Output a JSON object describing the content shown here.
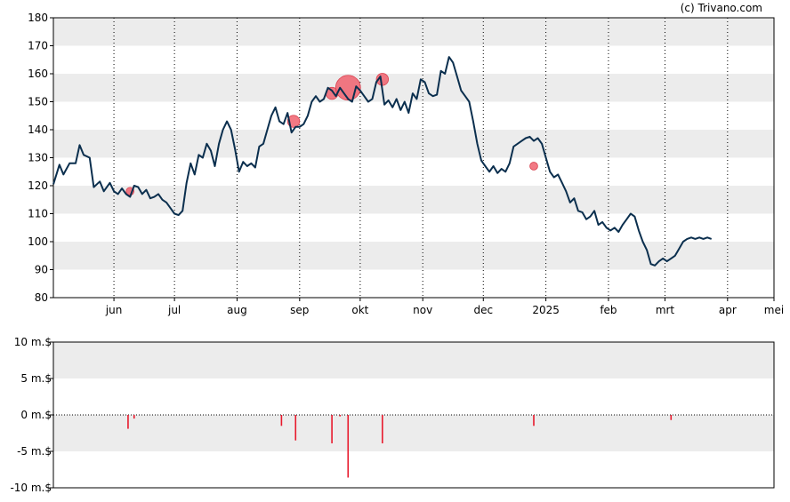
{
  "credit": "(c) Trivano.com",
  "chart_data": [
    {
      "type": "line",
      "yticks": [
        80,
        90,
        100,
        110,
        120,
        130,
        140,
        150,
        160,
        170,
        180
      ],
      "ylim": [
        80,
        180
      ],
      "xlim": [
        0,
        357
      ],
      "month_ticks": [
        {
          "label": "jun",
          "day": 30
        },
        {
          "label": "jul",
          "day": 60
        },
        {
          "label": "aug",
          "day": 91
        },
        {
          "label": "sep",
          "day": 122
        },
        {
          "label": "okt",
          "day": 152
        },
        {
          "label": "nov",
          "day": 183
        },
        {
          "label": "dec",
          "day": 213
        },
        {
          "label": "2025",
          "day": 244
        },
        {
          "label": "feb",
          "day": 275
        },
        {
          "label": "mrt",
          "day": 303
        },
        {
          "label": "apr",
          "day": 334
        },
        {
          "label": "mei",
          "day": 357
        }
      ],
      "grid_bands": true,
      "series": [
        {
          "color": "#0b2f4e",
          "points": [
            [
              0,
              120.5
            ],
            [
              3,
              127.5
            ],
            [
              5,
              124
            ],
            [
              8,
              128
            ],
            [
              11,
              128
            ],
            [
              13,
              134.5
            ],
            [
              15,
              131
            ],
            [
              18,
              130
            ],
            [
              20,
              119.5
            ],
            [
              23,
              121.5
            ],
            [
              25,
              118
            ],
            [
              28,
              121
            ],
            [
              30,
              118
            ],
            [
              32,
              117
            ],
            [
              34,
              119
            ],
            [
              36,
              117
            ],
            [
              38,
              116
            ],
            [
              40,
              120
            ],
            [
              42,
              119.5
            ],
            [
              44,
              117
            ],
            [
              46,
              118.5
            ],
            [
              48,
              115.5
            ],
            [
              50,
              116
            ],
            [
              52,
              117
            ],
            [
              54,
              115
            ],
            [
              56,
              114
            ],
            [
              58,
              112
            ],
            [
              60,
              110
            ],
            [
              62,
              109.5
            ],
            [
              64,
              111
            ],
            [
              66,
              121
            ],
            [
              68,
              128
            ],
            [
              70,
              124
            ],
            [
              72,
              131
            ],
            [
              74,
              130
            ],
            [
              76,
              135
            ],
            [
              78,
              132.5
            ],
            [
              80,
              127
            ],
            [
              82,
              135
            ],
            [
              84,
              140
            ],
            [
              86,
              143
            ],
            [
              88,
              140
            ],
            [
              90,
              133
            ],
            [
              92,
              125
            ],
            [
              94,
              128.5
            ],
            [
              96,
              127
            ],
            [
              98,
              128
            ],
            [
              100,
              126.5
            ],
            [
              102,
              134
            ],
            [
              104,
              135
            ],
            [
              106,
              140
            ],
            [
              108,
              145
            ],
            [
              110,
              148
            ],
            [
              112,
              143
            ],
            [
              114,
              142
            ],
            [
              116,
              146
            ],
            [
              118,
              139
            ],
            [
              120,
              141
            ],
            [
              122,
              141
            ],
            [
              124,
              142
            ],
            [
              126,
              145
            ],
            [
              128,
              150
            ],
            [
              130,
              152
            ],
            [
              132,
              150
            ],
            [
              134,
              151
            ],
            [
              136,
              155
            ],
            [
              138,
              154
            ],
            [
              140,
              152
            ],
            [
              142,
              155
            ],
            [
              144,
              153
            ],
            [
              146,
              151
            ],
            [
              148,
              150
            ],
            [
              150,
              155.5
            ],
            [
              152,
              154
            ],
            [
              154,
              152
            ],
            [
              156,
              150
            ],
            [
              158,
              151
            ],
            [
              160,
              157
            ],
            [
              162,
              159
            ],
            [
              164,
              149
            ],
            [
              166,
              150.5
            ],
            [
              168,
              148
            ],
            [
              170,
              151
            ],
            [
              172,
              147
            ],
            [
              174,
              150
            ],
            [
              176,
              146
            ],
            [
              178,
              153
            ],
            [
              180,
              151
            ],
            [
              182,
              158
            ],
            [
              184,
              157
            ],
            [
              186,
              153
            ],
            [
              188,
              152
            ],
            [
              190,
              152.5
            ],
            [
              192,
              161
            ],
            [
              194,
              160
            ],
            [
              196,
              166
            ],
            [
              198,
              164
            ],
            [
              200,
              159
            ],
            [
              202,
              154
            ],
            [
              204,
              152
            ],
            [
              206,
              150
            ],
            [
              208,
              143
            ],
            [
              210,
              135
            ],
            [
              212,
              129
            ],
            [
              214,
              127
            ],
            [
              216,
              125
            ],
            [
              218,
              127
            ],
            [
              220,
              124.5
            ],
            [
              222,
              126
            ],
            [
              224,
              125
            ],
            [
              226,
              128
            ],
            [
              228,
              134
            ],
            [
              230,
              135
            ],
            [
              232,
              136
            ],
            [
              234,
              137
            ],
            [
              236,
              137.5
            ],
            [
              238,
              136
            ],
            [
              240,
              137
            ],
            [
              242,
              135
            ],
            [
              244,
              130
            ],
            [
              246,
              125
            ],
            [
              248,
              123
            ],
            [
              250,
              124
            ],
            [
              252,
              121
            ],
            [
              254,
              118
            ],
            [
              256,
              114
            ],
            [
              258,
              115.5
            ],
            [
              260,
              111
            ],
            [
              262,
              110.5
            ],
            [
              264,
              108
            ],
            [
              266,
              109
            ],
            [
              268,
              111
            ],
            [
              270,
              106
            ],
            [
              272,
              107
            ],
            [
              274,
              105
            ],
            [
              276,
              104
            ],
            [
              278,
              105
            ],
            [
              280,
              103.5
            ],
            [
              282,
              106
            ],
            [
              284,
              108
            ],
            [
              286,
              110
            ],
            [
              288,
              109
            ],
            [
              290,
              104
            ],
            [
              292,
              100
            ],
            [
              294,
              97
            ],
            [
              296,
              92
            ],
            [
              298,
              91.5
            ],
            [
              300,
              93
            ],
            [
              302,
              94
            ],
            [
              304,
              93
            ],
            [
              306,
              94
            ],
            [
              308,
              95
            ],
            [
              310,
              97.5
            ],
            [
              312,
              100
            ],
            [
              314,
              101
            ],
            [
              316,
              101.5
            ],
            [
              318,
              101
            ],
            [
              320,
              101.5
            ],
            [
              322,
              101
            ],
            [
              324,
              101.5
            ],
            [
              326,
              101
            ]
          ]
        }
      ],
      "markers": [
        {
          "day": 38,
          "value": 118,
          "size": 1
        },
        {
          "day": 119,
          "value": 143,
          "size": 2
        },
        {
          "day": 138,
          "value": 153,
          "size": 2
        },
        {
          "day": 146,
          "value": 155,
          "size": 5
        },
        {
          "day": 163,
          "value": 158,
          "size": 2
        },
        {
          "day": 238,
          "value": 127,
          "size": 1
        }
      ]
    },
    {
      "type": "bar",
      "ylabel_unit": "m.$",
      "yticks": [
        {
          "value": 10,
          "label": "10 m.$"
        },
        {
          "value": 5,
          "label": "5 m.$"
        },
        {
          "value": 0,
          "label": "0 m.$"
        },
        {
          "value": -5,
          "label": "-5 m.$"
        },
        {
          "value": -10,
          "label": "-10 m.$"
        }
      ],
      "ylim": [
        -10,
        10
      ],
      "xlim": [
        0,
        357
      ],
      "grid_bands": true,
      "bars_color": "#e8192c",
      "bars": [
        {
          "day": 37,
          "value": -1.9
        },
        {
          "day": 40,
          "value": -0.5
        },
        {
          "day": 113,
          "value": -1.5
        },
        {
          "day": 120,
          "value": -3.5
        },
        {
          "day": 138,
          "value": -3.9
        },
        {
          "day": 142,
          "value": -0.2
        },
        {
          "day": 146,
          "value": -8.6
        },
        {
          "day": 163,
          "value": -3.9
        },
        {
          "day": 238,
          "value": -1.5
        },
        {
          "day": 306,
          "value": -0.7
        }
      ]
    }
  ]
}
